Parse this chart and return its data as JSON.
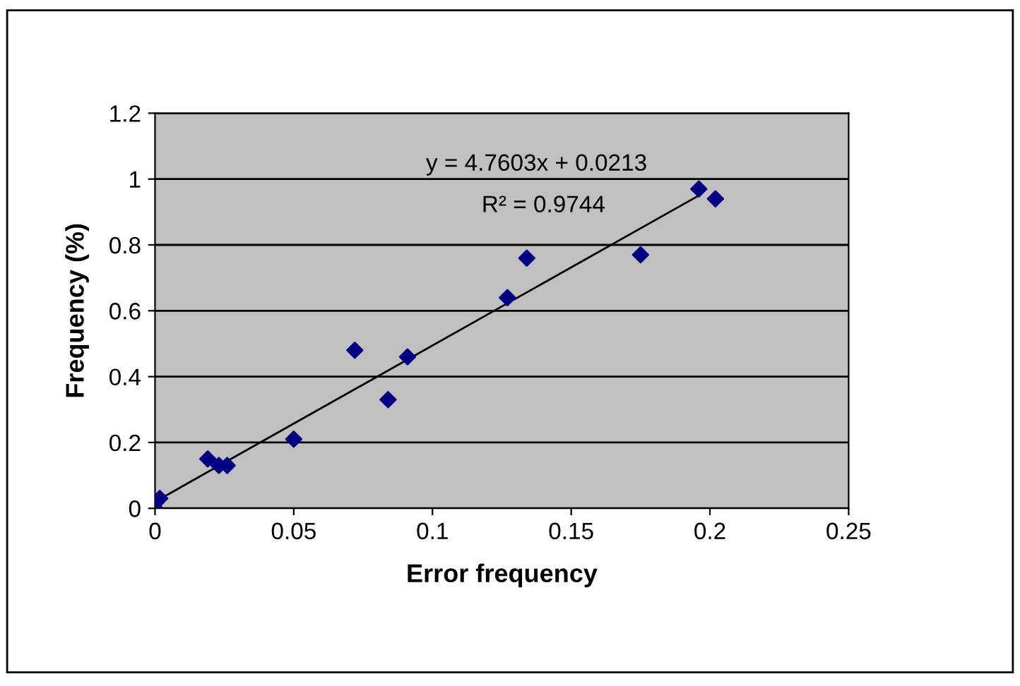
{
  "chart_data": {
    "type": "scatter",
    "xlabel": "Error frequency",
    "ylabel": "Frequency (%)",
    "xlim": [
      0,
      0.25
    ],
    "xticks": [
      0,
      0.05,
      0.1,
      0.15,
      0.2,
      0.25
    ],
    "ylim": [
      0,
      1.2
    ],
    "yticks": [
      0,
      0.2,
      0.4,
      0.6,
      0.8,
      1,
      1.2
    ],
    "grid": "y",
    "annotations": [
      "y = 4.7603x + 0.0213",
      "R² = 0.9744"
    ],
    "series": [
      {
        "marker": "diamond",
        "color": "#000080",
        "x": [
          0,
          0.0017,
          0.019,
          0.023,
          0.026,
          0.05,
          0.072,
          0.084,
          0.091,
          0.127,
          0.134,
          0.175,
          0.196,
          0.202
        ],
        "values": [
          0,
          0.03,
          0.15,
          0.13,
          0.13,
          0.21,
          0.48,
          0.33,
          0.46,
          0.64,
          0.76,
          0.77,
          0.97,
          0.94
        ]
      },
      {
        "type": "line",
        "marker": "none",
        "color": "#000000",
        "line_style": "solid",
        "x": [
          0,
          0.196
        ],
        "values": [
          0.02,
          0.95
        ]
      }
    ]
  }
}
